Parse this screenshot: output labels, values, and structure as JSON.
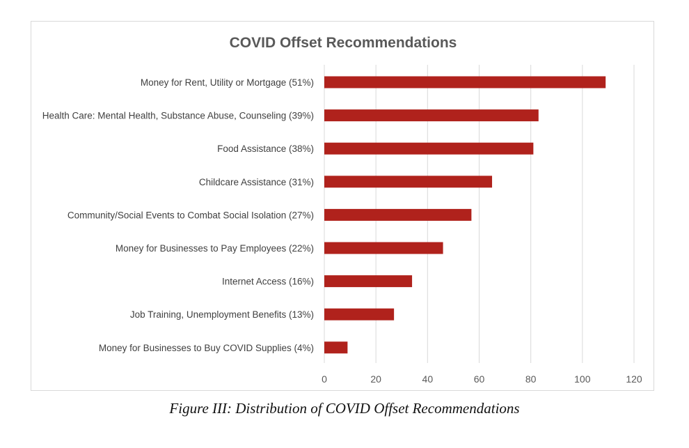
{
  "chart_data": {
    "type": "bar",
    "orientation": "horizontal",
    "title": "COVID Offset Recommendations",
    "categories": [
      "Money for Rent, Utility or Mortgage (51%)",
      "Health Care: Mental Health, Substance Abuse, Counseling (39%)",
      "Food Assistance (38%)",
      "Childcare Assistance (31%)",
      "Community/Social Events to Combat Social Isolation (27%)",
      "Money for Businesses to Pay Employees (22%)",
      "Internet Access (16%)",
      "Job Training, Unemployment Benefits (13%)",
      "Money for Businesses to Buy COVID Supplies (4%)"
    ],
    "values": [
      109,
      83,
      81,
      65,
      57,
      46,
      34,
      27,
      9
    ],
    "xlim": [
      0,
      120
    ],
    "xticks": [
      0,
      20,
      40,
      60,
      80,
      100,
      120
    ],
    "grid": true,
    "legend": "none",
    "bar_color": "#b0221c"
  },
  "caption": "Figure III: Distribution of COVID Offset Recommendations"
}
